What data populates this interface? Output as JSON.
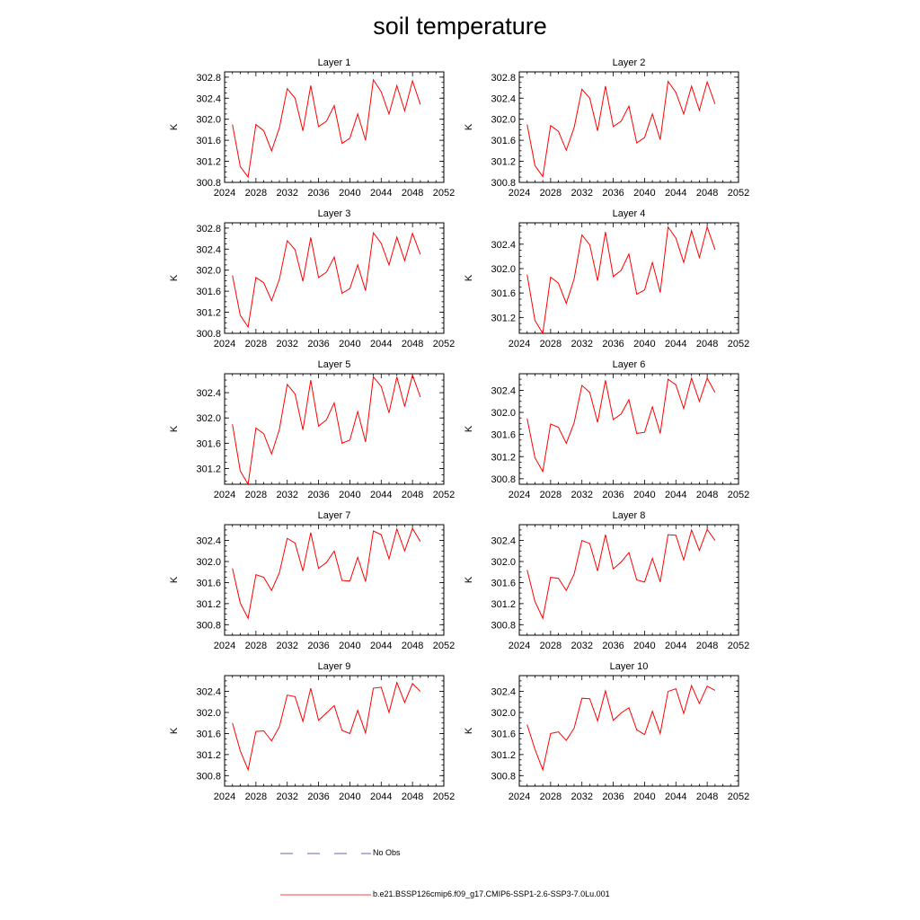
{
  "title": "soil temperature",
  "colors": {
    "series": "#ff0000",
    "no_obs": "#3333aa",
    "axis": "#000000"
  },
  "legend": {
    "entries": [
      {
        "label": "No Obs",
        "style": "dashed",
        "color": "#3333aa"
      },
      {
        "label": "b.e21.BSSP126cmip6.f09_g17.CMIP6-SSP1-2.6-SSP3-7.0Lu.001",
        "style": "solid",
        "color": "#ff0000"
      }
    ]
  },
  "chart_data": [
    {
      "type": "line",
      "title": "Layer 1",
      "ylabel": "K",
      "xlim": [
        2024,
        2052
      ],
      "ylim": [
        300.8,
        302.9
      ],
      "xticks": [
        2024,
        2028,
        2032,
        2036,
        2040,
        2044,
        2048,
        2052
      ],
      "yticks": [
        "300.8",
        "301.2",
        "301.6",
        "302.0",
        "302.4",
        "302.8"
      ],
      "x": [
        2025,
        2026,
        2027,
        2028,
        2029,
        2030,
        2031,
        2032,
        2033,
        2034,
        2035,
        2036,
        2037,
        2038,
        2039,
        2040,
        2041,
        2042,
        2043,
        2044,
        2045,
        2046,
        2047,
        2048,
        2049
      ],
      "series": [
        {
          "values": [
            301.9,
            301.1,
            300.9,
            301.9,
            301.78,
            301.4,
            301.84,
            302.58,
            302.4,
            301.78,
            302.64,
            301.86,
            301.96,
            302.26,
            301.54,
            301.64,
            302.1,
            301.6,
            302.75,
            302.52,
            302.1,
            302.64,
            302.16,
            302.73,
            302.28
          ]
        }
      ]
    },
    {
      "type": "line",
      "title": "Layer 2",
      "ylabel": "K",
      "xlim": [
        2024,
        2052
      ],
      "ylim": [
        300.8,
        302.9
      ],
      "xticks": [
        2024,
        2028,
        2032,
        2036,
        2040,
        2044,
        2048,
        2052
      ],
      "yticks": [
        "300.8",
        "301.2",
        "301.6",
        "302.0",
        "302.4",
        "302.8"
      ],
      "x": [
        2025,
        2026,
        2027,
        2028,
        2029,
        2030,
        2031,
        2032,
        2033,
        2034,
        2035,
        2036,
        2037,
        2038,
        2039,
        2040,
        2041,
        2042,
        2043,
        2044,
        2045,
        2046,
        2047,
        2048,
        2049
      ],
      "series": [
        {
          "values": [
            301.9,
            301.12,
            300.91,
            301.88,
            301.77,
            301.41,
            301.84,
            302.57,
            302.4,
            301.78,
            302.63,
            301.86,
            301.96,
            302.25,
            301.55,
            301.65,
            302.1,
            301.61,
            302.72,
            302.51,
            302.1,
            302.63,
            302.17,
            302.71,
            302.29
          ]
        }
      ]
    },
    {
      "type": "line",
      "title": "Layer 3",
      "ylabel": "K",
      "xlim": [
        2024,
        2052
      ],
      "ylim": [
        300.8,
        302.9
      ],
      "xticks": [
        2024,
        2028,
        2032,
        2036,
        2040,
        2044,
        2048,
        2052
      ],
      "yticks": [
        "300.8",
        "301.2",
        "301.6",
        "302.0",
        "302.4",
        "302.8"
      ],
      "x": [
        2025,
        2026,
        2027,
        2028,
        2029,
        2030,
        2031,
        2032,
        2033,
        2034,
        2035,
        2036,
        2037,
        2038,
        2039,
        2040,
        2041,
        2042,
        2043,
        2044,
        2045,
        2046,
        2047,
        2048,
        2049
      ],
      "series": [
        {
          "values": [
            301.9,
            301.14,
            300.92,
            301.86,
            301.76,
            301.42,
            301.83,
            302.56,
            302.39,
            301.79,
            302.62,
            301.86,
            301.96,
            302.25,
            301.56,
            301.65,
            302.1,
            301.61,
            302.71,
            302.51,
            302.1,
            302.63,
            302.18,
            302.7,
            302.3
          ]
        }
      ]
    },
    {
      "type": "line",
      "title": "Layer 4",
      "ylabel": "K",
      "xlim": [
        2024,
        2052
      ],
      "ylim": [
        300.94,
        302.75
      ],
      "xticks": [
        2024,
        2028,
        2032,
        2036,
        2040,
        2044,
        2048,
        2052
      ],
      "yticks": [
        "301.2",
        "301.6",
        "302.0",
        "302.4"
      ],
      "x": [
        2025,
        2026,
        2027,
        2028,
        2029,
        2030,
        2031,
        2032,
        2033,
        2034,
        2035,
        2036,
        2037,
        2038,
        2039,
        2040,
        2041,
        2042,
        2043,
        2044,
        2045,
        2046,
        2047,
        2048,
        2049
      ],
      "series": [
        {
          "values": [
            301.9,
            301.15,
            300.94,
            301.86,
            301.76,
            301.43,
            301.83,
            302.55,
            302.39,
            301.8,
            302.6,
            301.87,
            301.97,
            302.24,
            301.58,
            301.65,
            302.1,
            301.61,
            302.68,
            302.5,
            302.1,
            302.62,
            302.18,
            302.68,
            302.31
          ]
        }
      ]
    },
    {
      "type": "line",
      "title": "Layer 5",
      "ylabel": "K",
      "xlim": [
        2024,
        2052
      ],
      "ylim": [
        300.95,
        302.7
      ],
      "xticks": [
        2024,
        2028,
        2032,
        2036,
        2040,
        2044,
        2048,
        2052
      ],
      "yticks": [
        "301.2",
        "301.6",
        "302.0",
        "302.4"
      ],
      "x": [
        2025,
        2026,
        2027,
        2028,
        2029,
        2030,
        2031,
        2032,
        2033,
        2034,
        2035,
        2036,
        2037,
        2038,
        2039,
        2040,
        2041,
        2042,
        2043,
        2044,
        2045,
        2046,
        2047,
        2048,
        2049
      ],
      "series": [
        {
          "values": [
            301.9,
            301.16,
            300.95,
            301.84,
            301.75,
            301.43,
            301.82,
            302.53,
            302.38,
            301.81,
            302.6,
            301.87,
            301.97,
            302.24,
            301.6,
            301.65,
            302.1,
            301.62,
            302.65,
            302.5,
            302.08,
            302.65,
            302.18,
            302.68,
            302.33
          ]
        }
      ]
    },
    {
      "type": "line",
      "title": "Layer 6",
      "ylabel": "K",
      "xlim": [
        2024,
        2052
      ],
      "ylim": [
        300.7,
        302.7
      ],
      "xticks": [
        2024,
        2028,
        2032,
        2036,
        2040,
        2044,
        2048,
        2052
      ],
      "yticks": [
        "300.8",
        "301.2",
        "301.6",
        "302.0",
        "302.4"
      ],
      "x": [
        2025,
        2026,
        2027,
        2028,
        2029,
        2030,
        2031,
        2032,
        2033,
        2034,
        2035,
        2036,
        2037,
        2038,
        2039,
        2040,
        2041,
        2042,
        2043,
        2044,
        2045,
        2046,
        2047,
        2048,
        2049
      ],
      "series": [
        {
          "values": [
            301.89,
            301.18,
            300.93,
            301.79,
            301.73,
            301.44,
            301.81,
            302.49,
            302.36,
            301.82,
            302.58,
            301.87,
            301.97,
            302.23,
            301.62,
            301.64,
            302.1,
            301.62,
            302.6,
            302.5,
            302.07,
            302.62,
            302.2,
            302.62,
            302.36
          ]
        }
      ]
    },
    {
      "type": "line",
      "title": "Layer 7",
      "ylabel": "K",
      "xlim": [
        2024,
        2052
      ],
      "ylim": [
        300.6,
        302.7
      ],
      "xticks": [
        2024,
        2028,
        2032,
        2036,
        2040,
        2044,
        2048,
        2052
      ],
      "yticks": [
        "300.8",
        "301.2",
        "301.6",
        "302.0",
        "302.4"
      ],
      "x": [
        2025,
        2026,
        2027,
        2028,
        2029,
        2030,
        2031,
        2032,
        2033,
        2034,
        2035,
        2036,
        2037,
        2038,
        2039,
        2040,
        2041,
        2042,
        2043,
        2044,
        2045,
        2046,
        2047,
        2048,
        2049
      ],
      "series": [
        {
          "values": [
            301.87,
            301.21,
            300.92,
            301.75,
            301.7,
            301.45,
            301.79,
            302.44,
            302.35,
            301.82,
            302.55,
            301.87,
            301.98,
            302.2,
            301.64,
            301.63,
            302.08,
            301.62,
            302.58,
            302.51,
            302.05,
            302.62,
            302.2,
            302.63,
            302.38
          ]
        }
      ]
    },
    {
      "type": "line",
      "title": "Layer 8",
      "ylabel": "K",
      "xlim": [
        2024,
        2052
      ],
      "ylim": [
        300.6,
        302.7
      ],
      "xticks": [
        2024,
        2028,
        2032,
        2036,
        2040,
        2044,
        2048,
        2052
      ],
      "yticks": [
        "300.8",
        "301.2",
        "301.6",
        "302.0",
        "302.4"
      ],
      "x": [
        2025,
        2026,
        2027,
        2028,
        2029,
        2030,
        2031,
        2032,
        2033,
        2034,
        2035,
        2036,
        2037,
        2038,
        2039,
        2040,
        2041,
        2042,
        2043,
        2044,
        2045,
        2046,
        2047,
        2048,
        2049
      ],
      "series": [
        {
          "values": [
            301.84,
            301.24,
            300.92,
            301.7,
            301.68,
            301.45,
            301.76,
            302.4,
            302.34,
            301.82,
            302.51,
            301.86,
            301.99,
            302.17,
            301.65,
            301.61,
            302.06,
            301.61,
            302.51,
            302.5,
            302.03,
            302.6,
            302.21,
            302.61,
            302.4
          ]
        }
      ]
    },
    {
      "type": "line",
      "title": "Layer 9",
      "ylabel": "K",
      "xlim": [
        2024,
        2052
      ],
      "ylim": [
        300.6,
        302.7
      ],
      "xticks": [
        2024,
        2028,
        2032,
        2036,
        2040,
        2044,
        2048,
        2052
      ],
      "yticks": [
        "300.8",
        "301.2",
        "301.6",
        "302.0",
        "302.4"
      ],
      "x": [
        2025,
        2026,
        2027,
        2028,
        2029,
        2030,
        2031,
        2032,
        2033,
        2034,
        2035,
        2036,
        2037,
        2038,
        2039,
        2040,
        2041,
        2042,
        2043,
        2044,
        2045,
        2046,
        2047,
        2048,
        2049
      ],
      "series": [
        {
          "values": [
            301.8,
            301.27,
            300.91,
            301.64,
            301.65,
            301.46,
            301.73,
            302.33,
            302.3,
            301.83,
            302.46,
            301.85,
            301.99,
            302.13,
            301.66,
            301.6,
            302.04,
            301.61,
            302.46,
            302.48,
            302.0,
            302.57,
            302.19,
            302.55,
            302.4
          ]
        }
      ]
    },
    {
      "type": "line",
      "title": "Layer 10",
      "ylabel": "K",
      "xlim": [
        2024,
        2052
      ],
      "ylim": [
        300.6,
        302.7
      ],
      "xticks": [
        2024,
        2028,
        2032,
        2036,
        2040,
        2044,
        2048,
        2052
      ],
      "yticks": [
        "300.8",
        "301.2",
        "301.6",
        "302.0",
        "302.4"
      ],
      "x": [
        2025,
        2026,
        2027,
        2028,
        2029,
        2030,
        2031,
        2032,
        2033,
        2034,
        2035,
        2036,
        2037,
        2038,
        2039,
        2040,
        2041,
        2042,
        2043,
        2044,
        2045,
        2046,
        2047,
        2048,
        2049
      ],
      "series": [
        {
          "values": [
            301.77,
            301.3,
            300.91,
            301.6,
            301.63,
            301.47,
            301.7,
            302.27,
            302.26,
            301.84,
            302.41,
            301.85,
            301.99,
            302.09,
            301.67,
            301.58,
            302.02,
            301.6,
            302.4,
            302.45,
            301.98,
            302.51,
            302.17,
            302.5,
            302.42
          ]
        }
      ]
    }
  ]
}
